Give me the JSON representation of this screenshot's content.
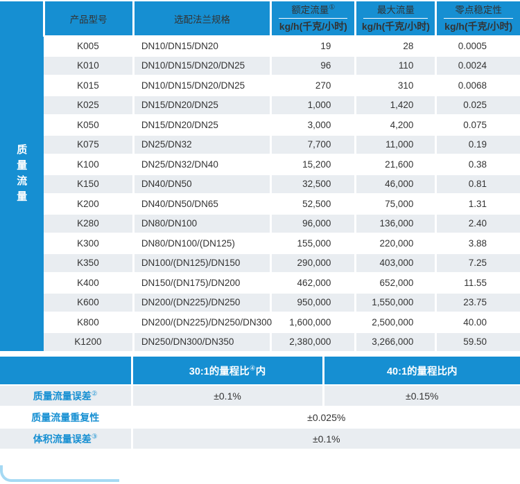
{
  "accent_color": "#168fd2",
  "row_alt_color": "#e9edf1",
  "sidebar": {
    "label": "质量流量"
  },
  "main_table": {
    "headers": {
      "product_model": "产品型号",
      "flange_spec": "选配法兰规格",
      "rated_flow": {
        "title": "额定流量",
        "sup": "①",
        "unit": "kg/h(千克/小时)"
      },
      "max_flow": {
        "title": "最大流量",
        "sup": "",
        "unit": "kg/h(千克/小时)"
      },
      "zero_stability": {
        "title": "零点稳定性",
        "sup": "",
        "unit": "kg/h(千克/小时)"
      }
    },
    "rows": [
      [
        "K005",
        "DN10/DN15/DN20",
        "19",
        "28",
        "0.0005"
      ],
      [
        "K010",
        "DN10/DN15/DN20/DN25",
        "96",
        "110",
        "0.0024"
      ],
      [
        "K015",
        "DN10/DN15/DN20/DN25",
        "270",
        "310",
        "0.0068"
      ],
      [
        "K025",
        "DN15/DN20/DN25",
        "1,000",
        "1,420",
        "0.025"
      ],
      [
        "K050",
        "DN15/DN20/DN25",
        "3,000",
        "4,200",
        "0.075"
      ],
      [
        "K075",
        "DN25/DN32",
        "7,700",
        "11,000",
        "0.19"
      ],
      [
        "K100",
        "DN25/DN32/DN40",
        "15,200",
        "21,600",
        "0.38"
      ],
      [
        "K150",
        "DN40/DN50",
        "32,500",
        "46,000",
        "0.81"
      ],
      [
        "K200",
        "DN40/DN50/DN65",
        "52,500",
        "75,000",
        "1.31"
      ],
      [
        "K280",
        "DN80/DN100",
        "96,000",
        "136,000",
        "2.40"
      ],
      [
        "K300",
        "DN80/DN100/(DN125)",
        "155,000",
        "220,000",
        "3.88"
      ],
      [
        "K350",
        "DN100/(DN125)/DN150",
        "290,000",
        "403,000",
        "7.25"
      ],
      [
        "K400",
        "DN150/(DN175)/DN200",
        "462,000",
        "652,000",
        "11.55"
      ],
      [
        "K600",
        "DN200/(DN225)/DN250",
        "950,000",
        "1,550,000",
        "23.75"
      ],
      [
        "K800",
        "DN200/(DN225)/DN250/DN300",
        "1,600,000",
        "2,500,000",
        "40.00"
      ],
      [
        "K1200",
        "DN250/DN300/DN350",
        "2,380,000",
        "3,266,000",
        "59.50"
      ]
    ]
  },
  "accuracy_table": {
    "col_headers": {
      "turndown_30": {
        "pre": "30:1的量程比",
        "sup": "④",
        "post": "内"
      },
      "turndown_40": {
        "pre": "40:1的量程比内",
        "sup": "",
        "post": ""
      }
    },
    "rows": [
      {
        "label": "质量流量误差",
        "sup": "②",
        "values": [
          "±0.1%",
          "±0.15%"
        ]
      },
      {
        "label": "质量流量重复性",
        "sup": "",
        "values": [
          "±0.025%"
        ]
      },
      {
        "label": "体积流量误差",
        "sup": "③",
        "values": [
          "±0.1%"
        ]
      }
    ]
  }
}
